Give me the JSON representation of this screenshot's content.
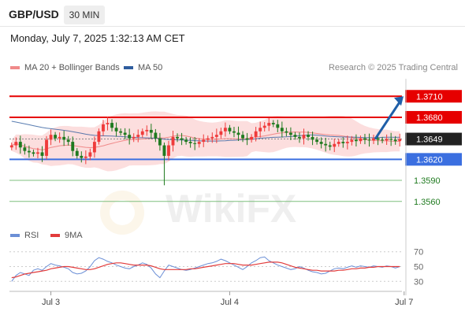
{
  "header": {
    "symbol": "GBP/USD",
    "timeframe": "30 MIN",
    "datetime": "Monday, July 7, 2025 1:32:13 AM CET"
  },
  "legend": {
    "ma20_label": "MA 20 + Bollinger Bands",
    "ma50_label": "MA 50",
    "credit": "Research © 2025 Trading Central"
  },
  "rsi_legend": {
    "rsi_label": "RSI",
    "ma_label": "9MA"
  },
  "colors": {
    "up": "#ef3b3b",
    "down": "#1f7a1f",
    "resistance": "#e60000",
    "support": "#3b6fe0",
    "target": "#1f5fa8",
    "ma20": "#f08a8a",
    "ma50": "#2f5d9e",
    "band": "#fbd3d3",
    "rsi": "#6b8fd6",
    "rsi_ma": "#e23b3b"
  },
  "watermark": "WikiFX",
  "chart_data": [
    {
      "type": "candlestick",
      "x_ticks": [
        "Jul 3",
        "Jul 4",
        "Jul 7"
      ],
      "x_tick_index": [
        9,
        50,
        90
      ],
      "ylim": [
        1.3535,
        1.3735
      ],
      "current_price": "1.3649",
      "levels": [
        {
          "label": "1.3710",
          "value": 1.371,
          "kind": "resistance"
        },
        {
          "label": "1.3680",
          "value": 1.368,
          "kind": "resistance"
        },
        {
          "label": "1.3620",
          "value": 1.362,
          "kind": "support"
        },
        {
          "label": "1.3590",
          "value": 1.359,
          "kind": "minor"
        },
        {
          "label": "1.3560",
          "value": 1.356,
          "kind": "minor"
        }
      ],
      "target": {
        "from": 1.3649,
        "to": 1.371
      },
      "closes": [
        1.364,
        1.3645,
        1.3637,
        1.3632,
        1.363,
        1.3628,
        1.363,
        1.3625,
        1.3648,
        1.3655,
        1.365,
        1.3652,
        1.3648,
        1.3645,
        1.3632,
        1.3625,
        1.3622,
        1.3624,
        1.363,
        1.3645,
        1.366,
        1.367,
        1.3672,
        1.3665,
        1.366,
        1.3658,
        1.3655,
        1.365,
        1.3652,
        1.3655,
        1.366,
        1.3662,
        1.3658,
        1.365,
        1.364,
        1.3625,
        1.364,
        1.3652,
        1.365,
        1.3648,
        1.3645,
        1.3643,
        1.3642,
        1.3645,
        1.3648,
        1.365,
        1.3652,
        1.3655,
        1.366,
        1.3665,
        1.366,
        1.3658,
        1.3655,
        1.365,
        1.3648,
        1.3652,
        1.366,
        1.3665,
        1.3668,
        1.3672,
        1.367,
        1.3665,
        1.366,
        1.3658,
        1.3655,
        1.3652,
        1.365,
        1.3655,
        1.3652,
        1.3648,
        1.3645,
        1.3642,
        1.364,
        1.3638,
        1.3642,
        1.3645,
        1.3643,
        1.3645,
        1.3648,
        1.3646,
        1.365,
        1.3648,
        1.3647,
        1.365,
        1.3648,
        1.3647,
        1.3649,
        1.3648,
        1.3646,
        1.3649
      ]
    },
    {
      "type": "line",
      "title": "RSI",
      "ylim": [
        25,
        75
      ],
      "y_ticks": [
        70,
        50,
        30
      ],
      "series": [
        {
          "name": "RSI",
          "values": [
            30,
            38,
            42,
            40,
            38,
            45,
            47,
            45,
            50,
            54,
            52,
            51,
            49,
            47,
            42,
            40,
            41,
            44,
            50,
            58,
            62,
            60,
            57,
            55,
            52,
            50,
            48,
            47,
            50,
            52,
            55,
            53,
            48,
            40,
            35,
            44,
            52,
            50,
            48,
            46,
            45,
            46,
            48,
            50,
            52,
            54,
            55,
            57,
            60,
            58,
            55,
            52,
            49,
            46,
            50,
            55,
            58,
            62,
            63,
            58,
            55,
            52,
            50,
            48,
            46,
            47,
            50,
            48,
            45,
            43,
            42,
            40,
            41,
            44,
            47,
            48,
            47,
            49,
            51,
            49,
            51,
            50,
            49,
            51,
            50,
            49,
            51,
            50,
            48,
            50
          ]
        },
        {
          "name": "9MA",
          "values": [
            35,
            36,
            38,
            40,
            41,
            42,
            43,
            44,
            45,
            47,
            48,
            49,
            50,
            50,
            49,
            48,
            47,
            46,
            46,
            47,
            49,
            51,
            53,
            54,
            55,
            55,
            54,
            53,
            52,
            52,
            52,
            52,
            51,
            49,
            47,
            46,
            46,
            46,
            46,
            46,
            46,
            47,
            47,
            48,
            49,
            50,
            51,
            52,
            53,
            54,
            54,
            54,
            53,
            52,
            52,
            52,
            53,
            54,
            55,
            56,
            56,
            56,
            55,
            53,
            51,
            49,
            48,
            47,
            46,
            45,
            45,
            44,
            44,
            44,
            44,
            45,
            45,
            46,
            47,
            47,
            48,
            48,
            49,
            49,
            50,
            50,
            50,
            50,
            50,
            50
          ]
        }
      ]
    }
  ]
}
